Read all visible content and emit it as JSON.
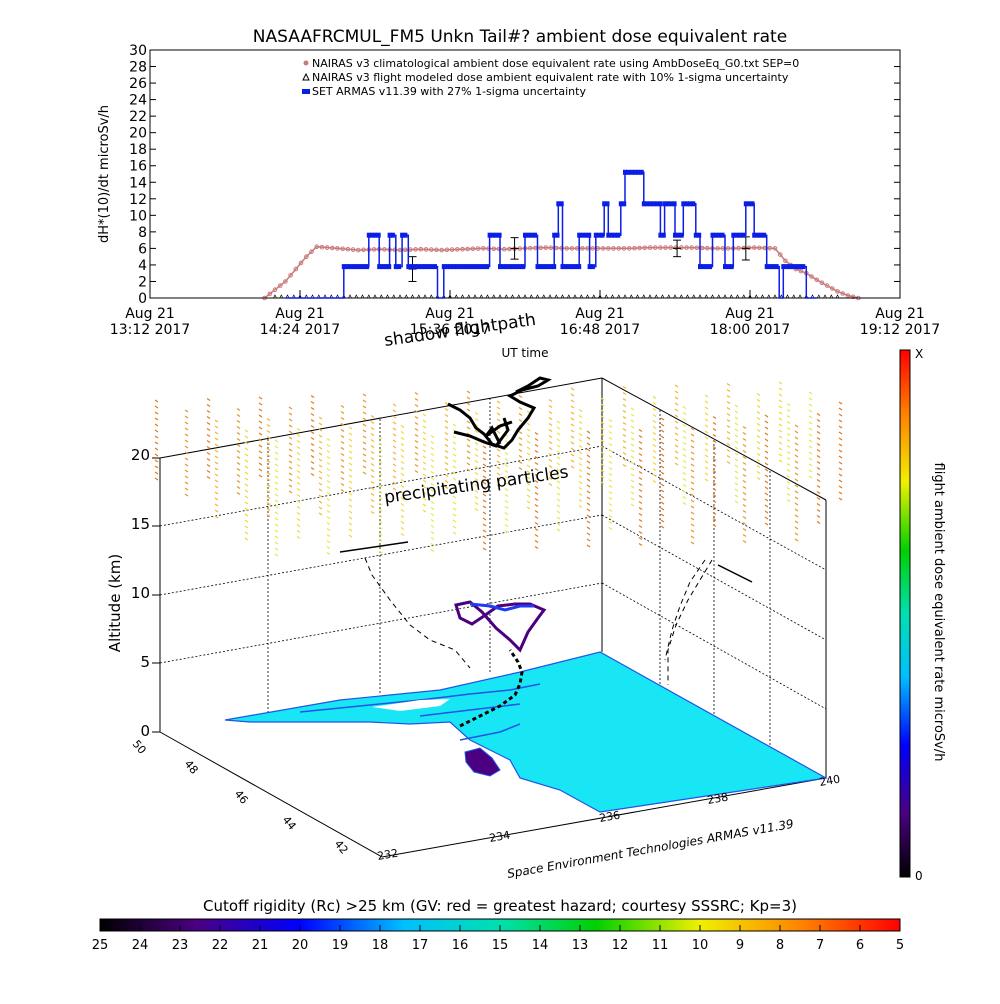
{
  "chart_data": [
    {
      "type": "line",
      "title": "NASAAFRCMUL_FM5 Unkn Tail#? ambient dose equivalent rate",
      "ylabel": "dH*(10)/dt microSv/h",
      "xlabel": "UT time",
      "ylim": [
        0,
        30
      ],
      "yticks": [
        0,
        2,
        4,
        6,
        8,
        10,
        12,
        14,
        16,
        18,
        20,
        22,
        24,
        26,
        28,
        30
      ],
      "xlim_minutes": [
        0,
        360
      ],
      "xticks": [
        {
          "day": "Aug 21",
          "time": "13:12 2017"
        },
        {
          "day": "Aug 21",
          "time": "14:24 2017"
        },
        {
          "day": "Aug 21",
          "time": "15:36 2017"
        },
        {
          "day": "Aug 21",
          "time": "16:48 2017"
        },
        {
          "day": "Aug 21",
          "time": "18:00 2017"
        },
        {
          "day": "Aug 21",
          "time": "19:12 2017"
        }
      ],
      "legend_placement": "top-right",
      "series": [
        {
          "name": "NAIRAS v3 climatological ambient dose equivalent rate using AmbDoseEq_G0.txt SEP=0",
          "color": "#c87a7a",
          "points": [
            [
              55,
              0
            ],
            [
              60,
              1
            ],
            [
              65,
              2
            ],
            [
              70,
              3.5
            ],
            [
              75,
              5
            ],
            [
              80,
              6.2
            ],
            [
              90,
              6.0
            ],
            [
              100,
              5.8
            ],
            [
              110,
              5.9
            ],
            [
              120,
              5.8
            ],
            [
              130,
              5.9
            ],
            [
              140,
              5.8
            ],
            [
              150,
              5.9
            ],
            [
              160,
              6.0
            ],
            [
              170,
              5.9
            ],
            [
              180,
              6.0
            ],
            [
              190,
              6.1
            ],
            [
              200,
              6.0
            ],
            [
              210,
              6.0
            ],
            [
              220,
              6.0
            ],
            [
              230,
              6.0
            ],
            [
              240,
              6.1
            ],
            [
              250,
              6.1
            ],
            [
              260,
              6.1
            ],
            [
              270,
              6.0
            ],
            [
              280,
              6.0
            ],
            [
              290,
              6.1
            ],
            [
              300,
              6.0
            ],
            [
              305,
              4.5
            ],
            [
              310,
              3.5
            ],
            [
              315,
              3.0
            ],
            [
              320,
              2.2
            ],
            [
              325,
              1.5
            ],
            [
              330,
              0.8
            ],
            [
              335,
              0.3
            ],
            [
              340,
              0
            ]
          ]
        },
        {
          "name": "NAIRAS v3 flight modeled dose ambient equivalent rate with 10% 1-sigma uncertainty",
          "color": "#000000",
          "points": [
            [
              0,
              0
            ],
            [
              360,
              0
            ]
          ],
          "error_bars": [
            [
              126,
              3.5,
              1.5
            ],
            [
              175,
              6,
              1.3
            ],
            [
              253,
              6,
              1.0
            ],
            [
              286,
              6,
              1.4
            ]
          ]
        },
        {
          "name": "SET ARMAS v11.39 with 27% 1-sigma uncertainty",
          "color": "#0a1ee6",
          "points": [
            [
              65,
              0
            ],
            [
              93,
              0
            ],
            [
              93,
              3.8
            ],
            [
              105,
              3.8
            ],
            [
              105,
              7.6
            ],
            [
              110,
              7.6
            ],
            [
              110,
              3.8
            ],
            [
              115,
              3.8
            ],
            [
              115,
              7.6
            ],
            [
              118,
              7.6
            ],
            [
              118,
              3.8
            ],
            [
              121,
              3.8
            ],
            [
              121,
              7.6
            ],
            [
              124,
              7.6
            ],
            [
              124,
              3.8
            ],
            [
              138,
              3.8
            ],
            [
              138,
              0
            ],
            [
              141,
              0
            ],
            [
              141,
              3.8
            ],
            [
              163,
              3.8
            ],
            [
              163,
              7.6
            ],
            [
              168,
              7.6
            ],
            [
              168,
              3.8
            ],
            [
              180,
              3.8
            ],
            [
              180,
              7.6
            ],
            [
              186,
              7.6
            ],
            [
              186,
              3.8
            ],
            [
              194,
              3.8
            ],
            [
              194,
              7.6
            ],
            [
              196,
              7.6
            ],
            [
              196,
              11.4
            ],
            [
              198,
              11.4
            ],
            [
              198,
              3.8
            ],
            [
              206,
              3.8
            ],
            [
              206,
              7.6
            ],
            [
              211,
              7.6
            ],
            [
              211,
              3.8
            ],
            [
              214,
              3.8
            ],
            [
              214,
              7.6
            ],
            [
              218,
              7.6
            ],
            [
              218,
              11.4
            ],
            [
              220,
              11.4
            ],
            [
              220,
              7.6
            ],
            [
              226,
              7.6
            ],
            [
              226,
              11.4
            ],
            [
              228,
              11.4
            ],
            [
              228,
              15.2
            ],
            [
              237,
              15.2
            ],
            [
              237,
              11.4
            ],
            [
              245,
              11.4
            ],
            [
              245,
              7.6
            ],
            [
              247,
              7.6
            ],
            [
              247,
              11.4
            ],
            [
              252,
              11.4
            ],
            [
              252,
              7.6
            ],
            [
              256,
              7.6
            ],
            [
              256,
              11.4
            ],
            [
              262,
              11.4
            ],
            [
              262,
              7.6
            ],
            [
              264,
              7.6
            ],
            [
              264,
              3.8
            ],
            [
              270,
              3.8
            ],
            [
              270,
              7.6
            ],
            [
              276,
              7.6
            ],
            [
              276,
              3.8
            ],
            [
              280,
              3.8
            ],
            [
              280,
              7.6
            ],
            [
              286,
              7.6
            ],
            [
              286,
              11.4
            ],
            [
              290,
              11.4
            ],
            [
              290,
              7.6
            ],
            [
              296,
              7.6
            ],
            [
              296,
              3.8
            ],
            [
              302,
              3.8
            ],
            [
              302,
              0
            ],
            [
              304,
              0
            ],
            [
              304,
              3.8
            ],
            [
              315,
              3.8
            ],
            [
              315,
              0
            ],
            [
              320,
              0
            ]
          ]
        }
      ]
    },
    {
      "type": "3d-flightpath",
      "zlabel": "Altitude (km)",
      "zticks": [
        "0",
        "5",
        "10",
        "15",
        "20"
      ],
      "lat_ticks": [
        "42",
        "44",
        "46",
        "48",
        "50"
      ],
      "lon_ticks": [
        "232",
        "234",
        "236",
        "238",
        "240"
      ],
      "annotations": [
        "shadow flightpath",
        "precipitating particles"
      ],
      "credit": "Space Environment Technologies ARMAS v11.39",
      "colorbar_label": "flight ambient dose equivalent rate microSv/h",
      "colorbar_max_label": "X",
      "colorbar_min_label": "0"
    }
  ],
  "cutoff_bar": {
    "title": "Cutoff rigidity (Rc) >25 km (GV: red = greatest hazard; courtesy SSSRC; Kp=3)",
    "ticks": [
      "25",
      "24",
      "23",
      "22",
      "21",
      "20",
      "19",
      "18",
      "17",
      "16",
      "15",
      "14",
      "13",
      "12",
      "11",
      "10",
      "9",
      "8",
      "7",
      "6",
      "5"
    ]
  },
  "colors": {
    "climatology": "#c87a7a",
    "armas": "#0a1ee6",
    "ground": "#19e6f5",
    "water_blue": "#1f55e6"
  }
}
